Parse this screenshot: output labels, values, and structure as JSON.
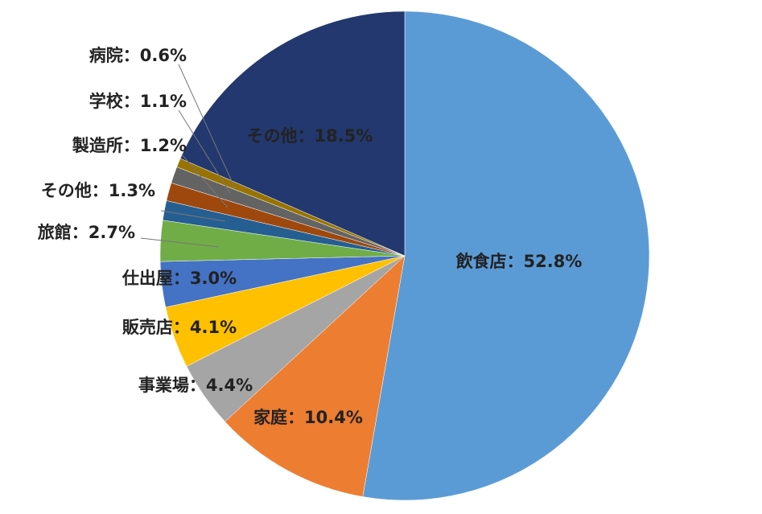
{
  "chart_data": {
    "type": "pie",
    "categories": [
      "飲食店",
      "家庭",
      "事業場",
      "販売店",
      "仕出屋",
      "旅館",
      "その他",
      "製造所",
      "学校",
      "病院",
      "その他"
    ],
    "values": [
      52.8,
      10.4,
      4.4,
      4.1,
      3.0,
      2.7,
      1.3,
      1.2,
      1.1,
      0.6,
      18.5
    ],
    "value_labels": [
      "：52.8%",
      "：10.4%",
      "：4.4%",
      "：4.1%",
      "：3.0%",
      "：2.7%",
      "：1.3%",
      "：1.2%",
      "：1.1%",
      "：0.6%",
      "：18.5%"
    ],
    "colors": [
      "#5b9bd5",
      "#ed7d31",
      "#a5a5a5",
      "#ffc000",
      "#4472c4",
      "#70ad47",
      "#255e91",
      "#9e480e",
      "#636363",
      "#997300",
      "#22386e"
    ]
  }
}
